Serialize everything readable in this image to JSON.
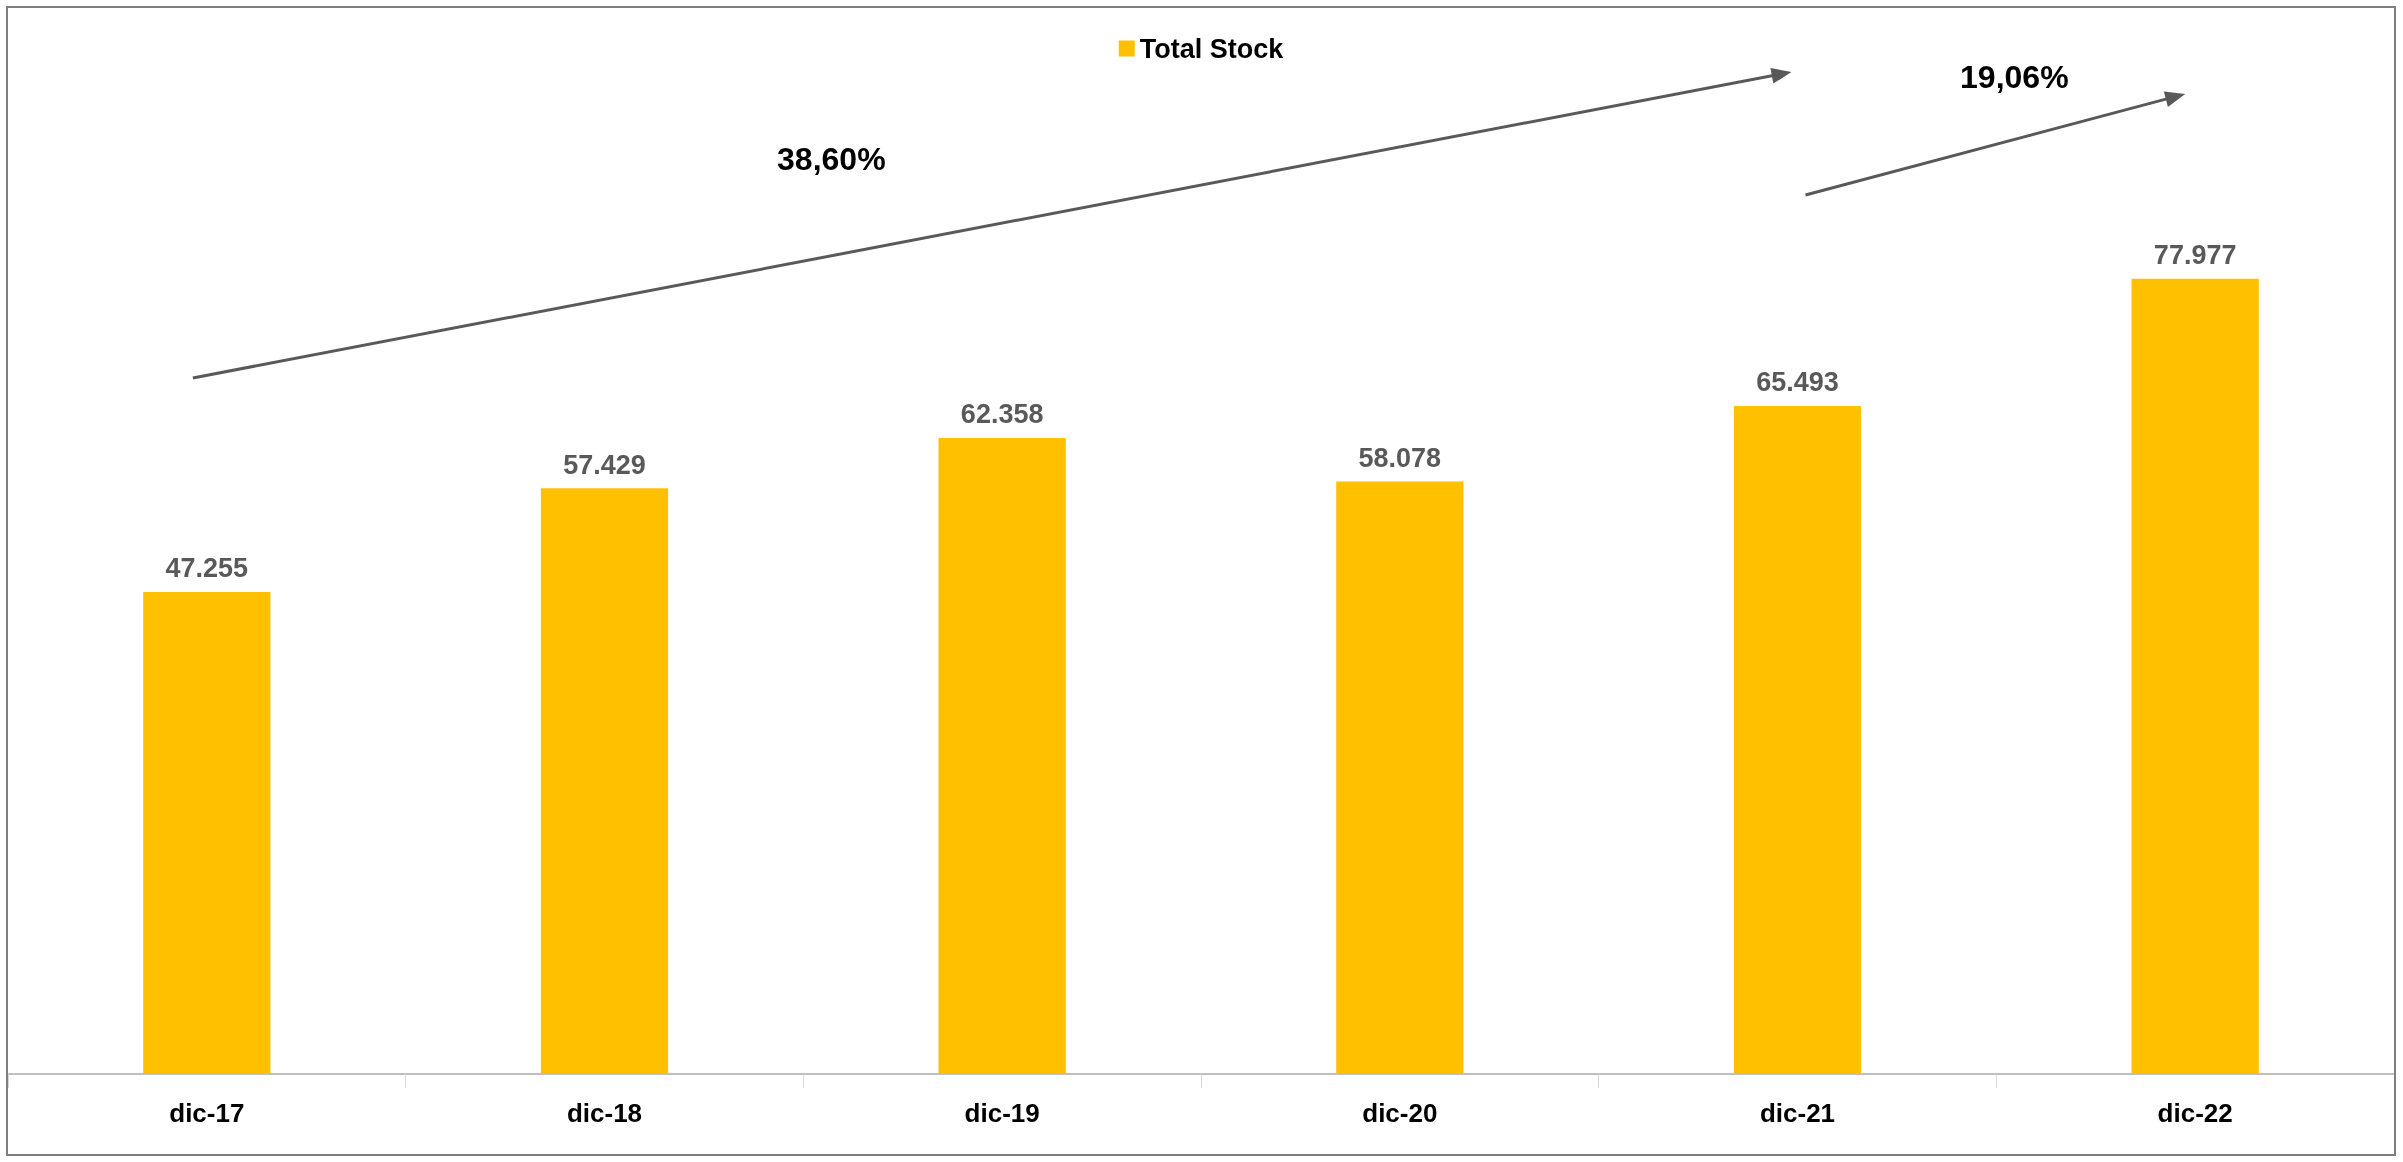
{
  "chart_data": {
    "type": "bar",
    "categories": [
      "dic-17",
      "dic-18",
      "dic-19",
      "dic-20",
      "dic-21",
      "dic-22"
    ],
    "series": [
      {
        "name": "Total Stock",
        "color": "#ffc000",
        "values": [
          47255,
          57429,
          62358,
          58078,
          65493,
          77977
        ],
        "value_labels": [
          "47.255",
          "57.429",
          "62.358",
          "58.078",
          "65.493",
          "77.977"
        ]
      }
    ],
    "annotations": [
      "38,60%",
      "19,06%"
    ],
    "legend": "top"
  }
}
